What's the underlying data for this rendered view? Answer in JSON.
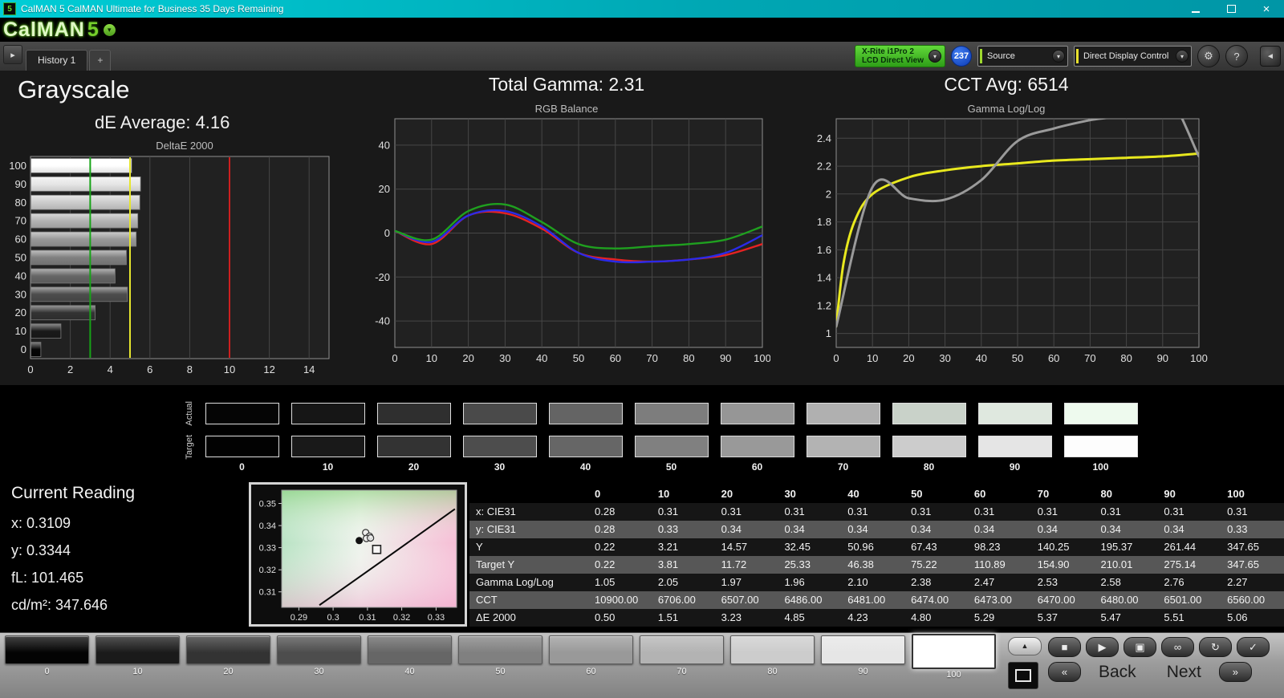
{
  "titlebar": {
    "icon_text": "5",
    "title": "CalMAN 5 CalMAN Ultimate for Business 35 Days Remaining"
  },
  "logo": {
    "text": "CalMAN",
    "five": "5"
  },
  "toolbar": {
    "history_tab": "History 1",
    "add_tab": "+",
    "meter_line1": "X-Rite i1Pro 2",
    "meter_line2": "LCD Direct View",
    "badge": "237",
    "source": "Source",
    "display_control": "Direct Display Control"
  },
  "headers": {
    "grayscale": "Grayscale",
    "de_average": "dE Average: 4.16",
    "total_gamma": "Total Gamma: 2.31",
    "cct_avg": "CCT Avg: 6514"
  },
  "chart_data": [
    {
      "type": "bar",
      "orientation": "horizontal",
      "title": "DeltaE 2000",
      "categories": [
        "100",
        "90",
        "80",
        "70",
        "60",
        "50",
        "40",
        "30",
        "20",
        "10",
        "0"
      ],
      "values": [
        5.06,
        5.51,
        5.47,
        5.37,
        5.29,
        4.8,
        4.23,
        4.85,
        3.23,
        1.51,
        0.5
      ],
      "bar_colors": [
        "#ffffff",
        "#e6e6e6",
        "#cccccc",
        "#b3b3b3",
        "#999999",
        "#808080",
        "#666666",
        "#4d4d4d",
        "#333333",
        "#1a1a1a",
        "#050505"
      ],
      "xlim": [
        0,
        15
      ],
      "x_ticks": [
        0,
        2,
        4,
        6,
        8,
        10,
        12,
        14
      ],
      "reference_lines": [
        {
          "value": 3,
          "color": "#17a317"
        },
        {
          "value": 5,
          "color": "#e6e62e"
        },
        {
          "value": 10,
          "color": "#cc1f1f"
        }
      ]
    },
    {
      "type": "line",
      "title": "RGB Balance",
      "x": [
        0,
        10,
        20,
        30,
        40,
        50,
        60,
        70,
        80,
        90,
        100
      ],
      "x_ticks": [
        0,
        10,
        20,
        30,
        40,
        50,
        60,
        70,
        80,
        90,
        100
      ],
      "ylim": [
        -52,
        52
      ],
      "y_ticks": [
        -40,
        -20,
        0,
        20,
        40
      ],
      "series": [
        {
          "name": "red",
          "color": "#e62222",
          "width": 2.4,
          "values": [
            1,
            -5,
            8,
            9,
            2,
            -9,
            -12,
            -13,
            -12,
            -10,
            -5
          ]
        },
        {
          "name": "blue",
          "color": "#2a2ae8",
          "width": 2.4,
          "values": [
            1,
            -4,
            8,
            10,
            3,
            -9,
            -13,
            -13,
            -12,
            -9,
            -1
          ]
        },
        {
          "name": "green",
          "color": "#1fa01f",
          "width": 2.4,
          "values": [
            1,
            -3,
            10,
            13,
            5,
            -5,
            -7,
            -6,
            -5,
            -3,
            3
          ]
        }
      ]
    },
    {
      "type": "line",
      "title": "Gamma Log/Log",
      "x_ticks": [
        0,
        10,
        20,
        30,
        40,
        50,
        60,
        70,
        80,
        90,
        100
      ],
      "ylim": [
        0.9,
        2.54
      ],
      "y_ticks": [
        1,
        1.2,
        1.4,
        1.6,
        1.8,
        2,
        2.2,
        2.4
      ],
      "series": [
        {
          "name": "target-gamma",
          "color": "#e8e81e",
          "width": 3,
          "x": [
            0,
            2,
            5,
            10,
            20,
            30,
            40,
            50,
            60,
            70,
            80,
            90,
            100
          ],
          "values": [
            1.05,
            1.5,
            1.8,
            2.0,
            2.12,
            2.17,
            2.2,
            2.22,
            2.24,
            2.25,
            2.26,
            2.27,
            2.29
          ]
        },
        {
          "name": "measured-gamma",
          "color": "#9a9a9a",
          "width": 3,
          "x": [
            0,
            10,
            20,
            30,
            40,
            50,
            60,
            70,
            80,
            90,
            100
          ],
          "values": [
            1.05,
            2.05,
            1.97,
            1.96,
            2.1,
            2.38,
            2.47,
            2.53,
            2.58,
            2.76,
            2.27
          ]
        }
      ]
    },
    {
      "type": "scatter",
      "xlim": [
        0.285,
        0.336
      ],
      "ylim": [
        0.303,
        0.356
      ],
      "x_ticks": [
        0.29,
        0.3,
        0.31,
        0.32,
        0.33
      ],
      "x_tick_labels": [
        "0.29",
        "0.3",
        "0.31",
        "0.32",
        "0.33"
      ],
      "y_ticks": [
        0.31,
        0.32,
        0.33,
        0.34,
        0.35
      ],
      "y_tick_labels": [
        "0.31",
        "0.32",
        "0.33",
        "0.34",
        "0.35"
      ],
      "measured_points": [
        [
          0.3095,
          0.3368
        ],
        [
          0.3106,
          0.3352
        ],
        [
          0.3097,
          0.3342
        ],
        [
          0.3109,
          0.3344
        ]
      ],
      "current_point": [
        0.3076,
        0.3332
      ],
      "target_point": [
        0.3127,
        0.3292
      ]
    }
  ],
  "swatches": {
    "row_labels": [
      "Actual",
      "Target"
    ],
    "labels": [
      "0",
      "10",
      "20",
      "30",
      "40",
      "50",
      "60",
      "70",
      "80",
      "90",
      "100"
    ],
    "actual": [
      "#050505",
      "#161616",
      "#2f2f2f",
      "#4a4a4a",
      "#646464",
      "#7d7d7d",
      "#969696",
      "#b0b0b0",
      "#c9d2c9",
      "#dfe8df",
      "#eefaee"
    ],
    "target": [
      "#020202",
      "#191919",
      "#333333",
      "#4d4d4d",
      "#666666",
      "#808080",
      "#999999",
      "#b3b3b3",
      "#cccccc",
      "#e5e5e5",
      "#fdfdfd"
    ]
  },
  "current_reading": {
    "title": "Current Reading",
    "lines": [
      "x: 0.3109",
      "y: 0.3344",
      "fL: 101.465",
      "cd/m²: 347.646"
    ]
  },
  "table": {
    "header": [
      "",
      "0",
      "10",
      "20",
      "30",
      "40",
      "50",
      "60",
      "70",
      "80",
      "90",
      "100"
    ],
    "rows": [
      {
        "label": "x: CIE31",
        "values": [
          "0.28",
          "0.31",
          "0.31",
          "0.31",
          "0.31",
          "0.31",
          "0.31",
          "0.31",
          "0.31",
          "0.31",
          "0.31"
        ]
      },
      {
        "label": "y: CIE31",
        "values": [
          "0.28",
          "0.33",
          "0.34",
          "0.34",
          "0.34",
          "0.34",
          "0.34",
          "0.34",
          "0.34",
          "0.34",
          "0.33"
        ]
      },
      {
        "label": "Y",
        "values": [
          "0.22",
          "3.21",
          "14.57",
          "32.45",
          "50.96",
          "67.43",
          "98.23",
          "140.25",
          "195.37",
          "261.44",
          "347.65"
        ]
      },
      {
        "label": "Target Y",
        "values": [
          "0.22",
          "3.81",
          "11.72",
          "25.33",
          "46.38",
          "75.22",
          "110.89",
          "154.90",
          "210.01",
          "275.14",
          "347.65"
        ]
      },
      {
        "label": "Gamma Log/Log",
        "values": [
          "1.05",
          "2.05",
          "1.97",
          "1.96",
          "2.10",
          "2.38",
          "2.47",
          "2.53",
          "2.58",
          "2.76",
          "2.27"
        ]
      },
      {
        "label": "CCT",
        "values": [
          "10900.00",
          "6706.00",
          "6507.00",
          "6486.00",
          "6481.00",
          "6474.00",
          "6473.00",
          "6470.00",
          "6480.00",
          "6501.00",
          "6560.00"
        ]
      },
      {
        "label": "ΔE 2000",
        "values": [
          "0.50",
          "1.51",
          "3.23",
          "4.85",
          "4.23",
          "4.80",
          "5.29",
          "5.37",
          "5.47",
          "5.51",
          "5.06"
        ]
      }
    ]
  },
  "bottom_bar": {
    "levels": [
      "0",
      "10",
      "20",
      "30",
      "40",
      "50",
      "60",
      "70",
      "80",
      "90",
      "100"
    ],
    "colors": [
      "#030303",
      "#1a1a1a",
      "#333333",
      "#4d4d4d",
      "#666666",
      "#808080",
      "#999999",
      "#b3b3b3",
      "#cccccc",
      "#e6e6e6",
      "#ffffff"
    ],
    "selected_index": 10,
    "eject_glyph": "▲",
    "controls": [
      {
        "name": "stop",
        "glyph": "■"
      },
      {
        "name": "play",
        "glyph": "▶"
      },
      {
        "name": "pause",
        "glyph": "▣"
      },
      {
        "name": "continuous",
        "glyph": "∞"
      },
      {
        "name": "loop",
        "glyph": "↻"
      },
      {
        "name": "accept",
        "glyph": "✓"
      }
    ],
    "prev_glyph": "«",
    "back": "Back",
    "next": "Next",
    "next_glyph": "»"
  }
}
